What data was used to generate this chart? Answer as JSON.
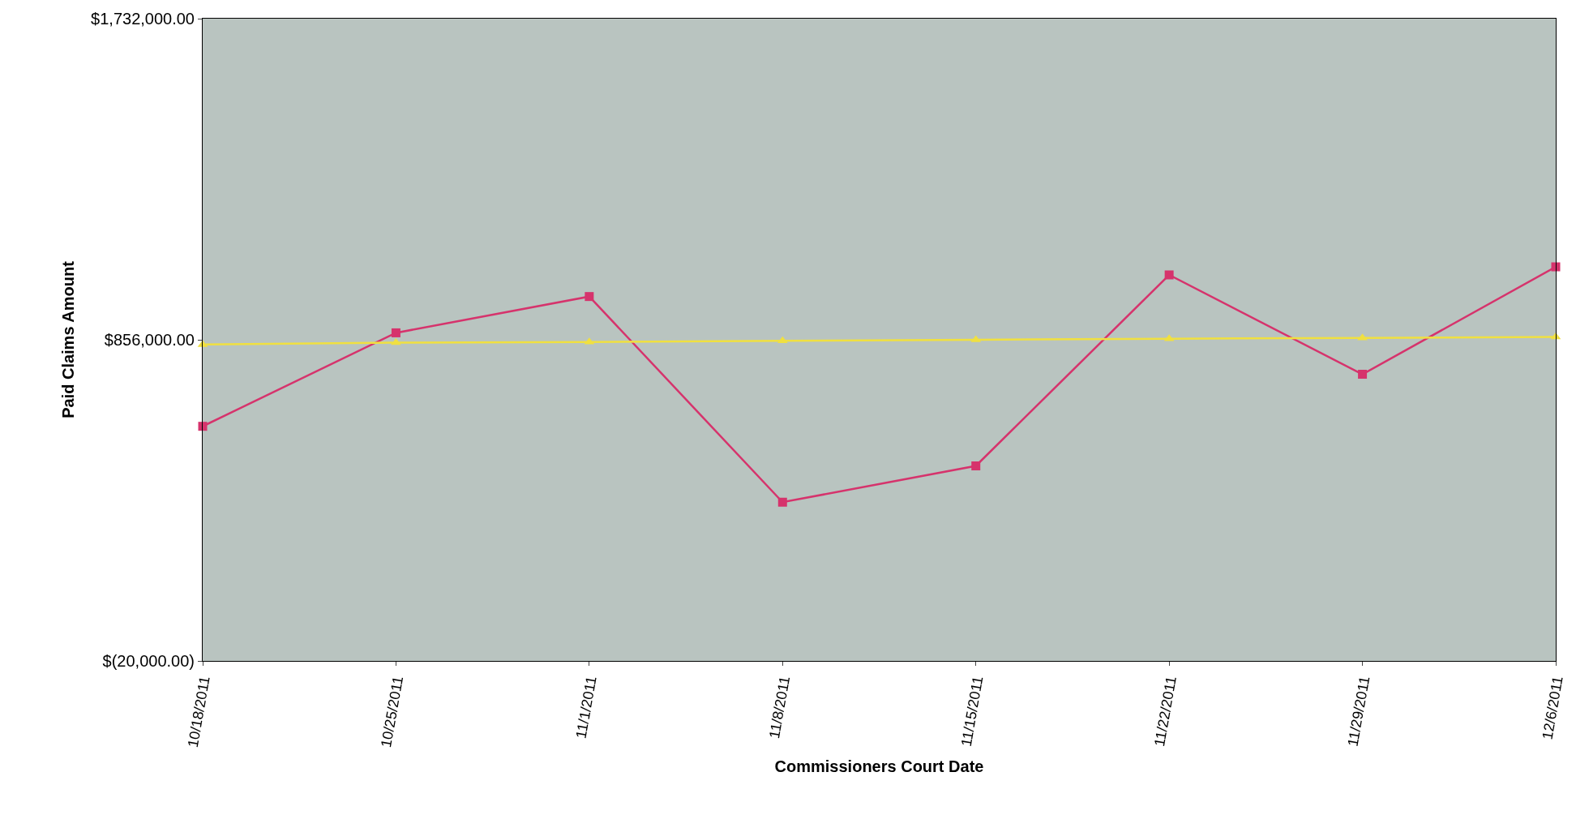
{
  "chart_data": {
    "type": "line",
    "xlabel": "Commissioners Court Date",
    "ylabel": "Paid Claims Amount",
    "categories": [
      "10/18/2011",
      "10/25/2011",
      "11/1/2011",
      "11/8/2011",
      "11/15/2011",
      "11/22/2011",
      "11/29/2011",
      "12/6/2011"
    ],
    "series": [
      {
        "color": "#d6336c",
        "marker": "square",
        "values": [
          620000,
          875000,
          974000,
          413000,
          512000,
          1033000,
          762000,
          1055000
        ]
      },
      {
        "color": "#f0e040",
        "marker": "triangle",
        "values": [
          843000,
          848000,
          850000,
          853000,
          856000,
          859000,
          861000,
          864000
        ]
      }
    ],
    "ylim": [
      -20000,
      1732000
    ],
    "yticks": [
      {
        "value": -20000,
        "label": "$(20,000.00)"
      },
      {
        "value": 856000,
        "label": "$856,000.00"
      },
      {
        "value": 1732000,
        "label": "$1,732,000.00"
      }
    ],
    "grid": false
  }
}
